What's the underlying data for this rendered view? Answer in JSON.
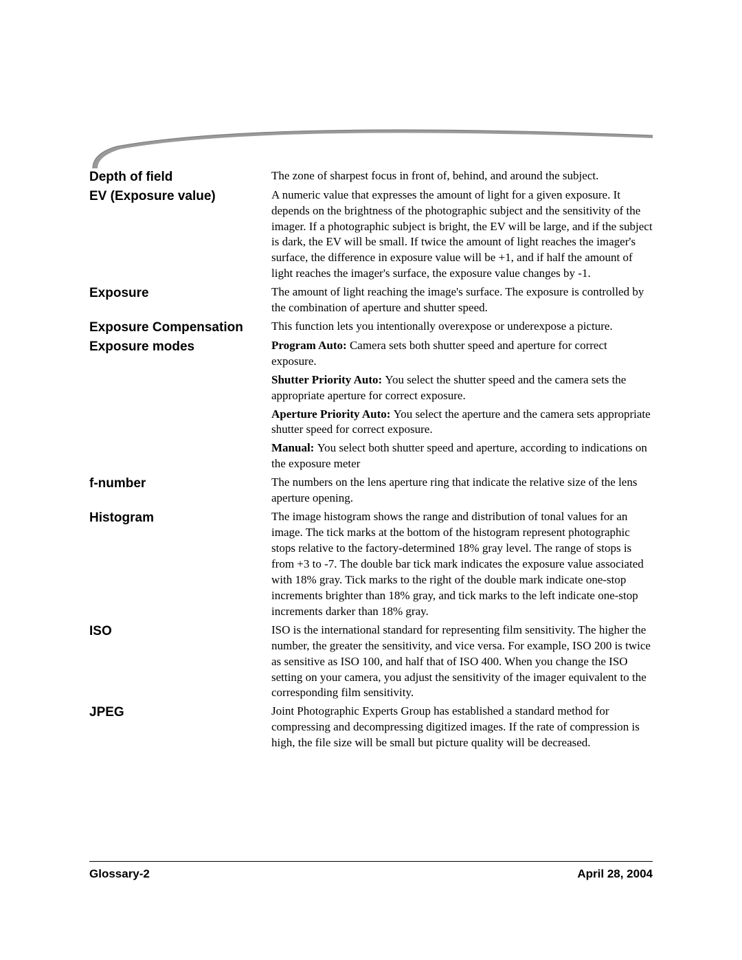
{
  "swoosh": {
    "stroke": "#888888",
    "fill": "#ffffff"
  },
  "entries": [
    {
      "term": "Depth of field",
      "defs": [
        {
          "label": "",
          "text": "The zone of sharpest focus in front of, behind, and around the subject."
        }
      ]
    },
    {
      "term": "EV (Exposure value)",
      "defs": [
        {
          "label": "",
          "text": "A numeric value that expresses the amount of light for a given exposure. It depends on the brightness of the photographic subject and the sensitivity of the imager. If a photographic subject is bright, the EV will be large, and if the subject is dark, the EV will be small. If twice the amount of light reaches the imager's surface, the difference in exposure value will be +1, and if half the amount of light reaches the imager's surface, the exposure value changes by -1."
        }
      ]
    },
    {
      "term": "Exposure",
      "defs": [
        {
          "label": "",
          "text": "The amount of light reaching the image's surface. The exposure is controlled by the combination of aperture and shutter speed."
        }
      ]
    },
    {
      "term": "Exposure Compensation",
      "defs": [
        {
          "label": "",
          "text": "This function lets you intentionally overexpose or underexpose a picture."
        }
      ]
    },
    {
      "term": "Exposure modes",
      "defs": [
        {
          "label": "Program Auto: ",
          "text": "Camera sets both shutter speed and aperture for correct exposure."
        },
        {
          "label": "Shutter Priority Auto: ",
          "text": "You select the shutter speed and the camera sets the appropriate aperture for correct exposure."
        },
        {
          "label": "Aperture Priority Auto: ",
          "text": "You select the aperture and the camera sets appropriate shutter speed for correct exposure."
        },
        {
          "label": "Manual: ",
          "text": "You select both shutter speed and aperture, according to indications on the exposure meter"
        }
      ]
    },
    {
      "term": "f-number",
      "defs": [
        {
          "label": "",
          "text": "The numbers on the lens aperture ring that indicate the relative size of the lens aperture opening."
        }
      ]
    },
    {
      "term": "Histogram",
      "defs": [
        {
          "label": "",
          "text": "The image histogram shows the range and distribution of tonal values for an image. The tick marks at the bottom of the histogram represent photographic stops relative to the factory-determined 18% gray level. The range of stops is from +3 to -7. The double bar tick mark indicates the exposure value associated with 18% gray. Tick marks to the right of the double mark indicate one-stop increments brighter than 18% gray, and tick marks to the left indicate one-stop increments darker than 18% gray."
        }
      ]
    },
    {
      "term": "ISO",
      "defs": [
        {
          "label": "",
          "text": "ISO is the international standard for representing film sensitivity. The higher the number, the greater the sensitivity, and vice versa. For example, ISO 200 is twice as sensitive as ISO 100, and half that of ISO 400. When you change the ISO setting on your camera, you adjust the sensitivity of the imager equivalent to the corresponding film sensitivity."
        }
      ]
    },
    {
      "term": "JPEG",
      "defs": [
        {
          "label": "",
          "text": "Joint Photographic Experts Group has established a standard method for compressing and decompressing digitized images. If the rate of compression is high, the file size will be small but picture quality will be decreased."
        }
      ]
    }
  ],
  "footer": {
    "left": "Glossary-2",
    "right": "April 28, 2004"
  }
}
